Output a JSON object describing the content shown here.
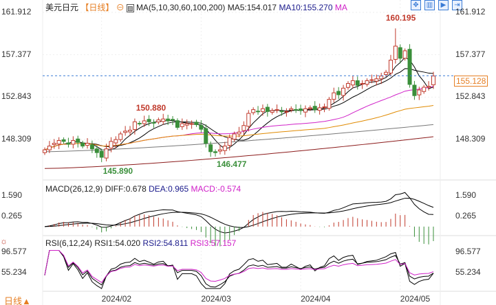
{
  "header": {
    "title": "美元日元",
    "period": "【日线】",
    "ma_label": "MA(5,10,30,60,100,200)",
    "ma5": "MA5:154.017",
    "ma10": "MA10:155.270",
    "ma_more": "MA"
  },
  "macd_header": {
    "label": "MACD(26,12,9)",
    "diff": "DIFF:0.678",
    "dea": "DEA:0.965",
    "macd": "MACD:-0.574"
  },
  "rsi_header": {
    "label": "RSI(6,12,24)",
    "rsi1": "RSI1:54.020",
    "rsi2": "RSI2:54.811",
    "rsi3": "RSI3:57.157"
  },
  "footer": {
    "period_button": "日线▲"
  },
  "colors": {
    "up": "#c0392b",
    "down": "#3a8f3a",
    "ma5": "#000000",
    "ma10": "#000000",
    "ma30": "#d020c8",
    "ma60": "#e08a00",
    "ma100": "#777777",
    "ma200": "#8b1a1a",
    "current": "#e67e22"
  },
  "chart_data": {
    "type": "candlestick",
    "price_axis": {
      "ticks": [
        "161.912",
        "157.377",
        "152.843",
        "148.309"
      ],
      "ylim": [
        145.0,
        162.5
      ]
    },
    "current_price": "155.128",
    "annotations": [
      {
        "text": "160.195",
        "type": "high"
      },
      {
        "text": "150.880",
        "type": "local-high"
      },
      {
        "text": "145.890",
        "type": "low"
      },
      {
        "text": "146.477",
        "type": "low"
      }
    ],
    "x_ticks": [
      "2024/02",
      "2024/03",
      "2024/04",
      "2024/05"
    ],
    "x_tick_index": [
      12,
      33,
      54,
      75
    ],
    "closes": [
      147.2,
      147.6,
      147.9,
      148.2,
      148.1,
      147.8,
      148.2,
      148.0,
      147.6,
      147.9,
      147.3,
      146.9,
      146.4,
      147.3,
      148.1,
      148.3,
      148.9,
      149.2,
      149.3,
      150.2,
      150.0,
      150.3,
      150.2,
      150.1,
      150.4,
      150.5,
      150.3,
      150.4,
      149.6,
      150.0,
      150.0,
      150.0,
      149.9,
      149.4,
      147.9,
      147.0,
      146.9,
      147.2,
      147.6,
      148.5,
      148.9,
      149.1,
      149.8,
      151.1,
      151.5,
      151.3,
      151.6,
      151.3,
      151.4,
      151.5,
      151.3,
      151.3,
      151.6,
      151.5,
      151.4,
      151.6,
      151.7,
      151.5,
      151.7,
      151.8,
      152.6,
      153.3,
      153.1,
      153.8,
      154.3,
      154.6,
      154.1,
      154.3,
      154.6,
      154.7,
      154.8,
      155.1,
      155.5,
      156.8,
      158.3,
      157.0,
      157.8,
      154.2,
      153.0,
      153.6,
      153.9,
      154.0,
      155.1
    ],
    "macd_axis": {
      "ticks": [
        "1.590",
        "0.265"
      ]
    },
    "rsi_axis": {
      "ticks": [
        "96.577",
        "55.234"
      ]
    }
  }
}
